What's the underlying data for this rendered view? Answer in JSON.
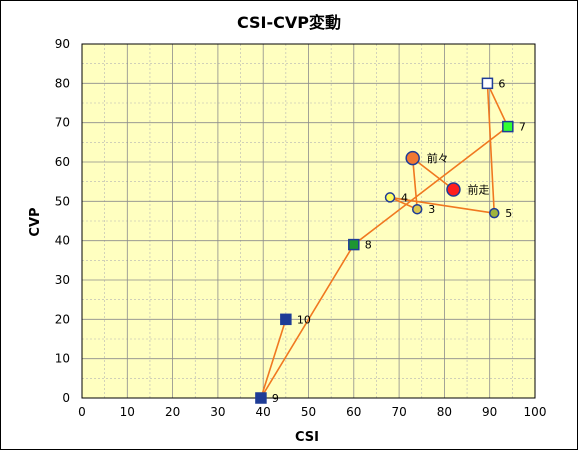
{
  "chart_data": {
    "type": "scatter",
    "title": "CSI-CVP変動",
    "xlabel": "CSI",
    "ylabel": "CVP",
    "xlim": [
      0,
      100
    ],
    "ylim": [
      0,
      90
    ],
    "x_ticks": [
      0,
      10,
      20,
      30,
      40,
      50,
      60,
      70,
      80,
      90,
      100
    ],
    "y_ticks": [
      0,
      10,
      20,
      30,
      40,
      50,
      60,
      70,
      80,
      90
    ],
    "grid": true,
    "plot_background": "#ffffc0",
    "line_color": "#f07820",
    "points": [
      {
        "label": "10",
        "x": 45,
        "y": 20,
        "marker": "square",
        "fill": "#1e3c96",
        "stroke": "#1e3c96"
      },
      {
        "label": "9",
        "x": 39.5,
        "y": 0,
        "marker": "square",
        "fill": "#1e3c96",
        "stroke": "#1e3c96"
      },
      {
        "label": "8",
        "x": 60,
        "y": 39,
        "marker": "square",
        "fill": "#1e9632",
        "stroke": "#1e3c96"
      },
      {
        "label": "7",
        "x": 94,
        "y": 69,
        "marker": "square",
        "fill": "#32ff32",
        "stroke": "#1e3c96"
      },
      {
        "label": "6",
        "x": 89.5,
        "y": 80,
        "marker": "square",
        "fill": "#ffffff",
        "stroke": "#1e3c96"
      },
      {
        "label": "5",
        "x": 91,
        "y": 47,
        "marker": "circle",
        "fill": "#a0b43c",
        "stroke": "#1e3c96"
      },
      {
        "label": "4",
        "x": 68,
        "y": 51,
        "marker": "circle",
        "fill": "#ffff64",
        "stroke": "#1e3c96"
      },
      {
        "label": "3",
        "x": 74,
        "y": 48,
        "marker": "circle",
        "fill": "#dcc850",
        "stroke": "#1e3c96"
      },
      {
        "label": "前々",
        "x": 73,
        "y": 61,
        "marker": "circle-large",
        "fill": "#f07832",
        "stroke": "#1e3c96"
      },
      {
        "label": "前走",
        "x": 82,
        "y": 53,
        "marker": "circle-large",
        "fill": "#ff1e1e",
        "stroke": "#1e3c96"
      }
    ]
  }
}
